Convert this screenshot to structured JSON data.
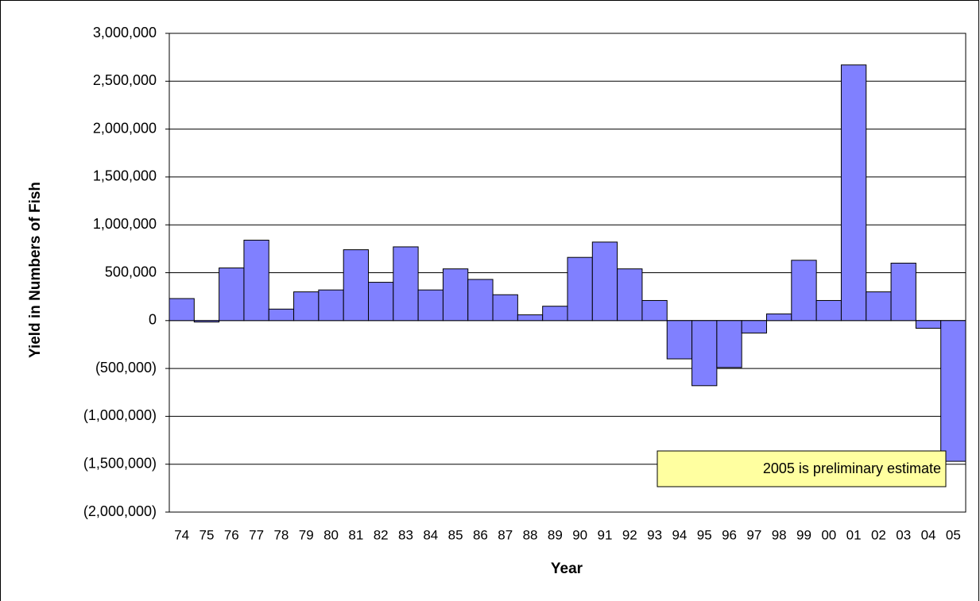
{
  "chart_data": {
    "type": "bar",
    "y_label": "Yield in Numbers of Fish",
    "x_label": "Year",
    "annotation": "2005 is preliminary estimate",
    "categories": [
      "74",
      "75",
      "76",
      "77",
      "78",
      "79",
      "80",
      "81",
      "82",
      "83",
      "84",
      "85",
      "86",
      "87",
      "88",
      "89",
      "90",
      "91",
      "92",
      "93",
      "94",
      "95",
      "96",
      "97",
      "98",
      "99",
      "00",
      "01",
      "02",
      "03",
      "04",
      "05"
    ],
    "values": [
      230000,
      -15000,
      550000,
      840000,
      120000,
      300000,
      320000,
      740000,
      400000,
      770000,
      320000,
      540000,
      430000,
      270000,
      60000,
      150000,
      660000,
      820000,
      540000,
      210000,
      -400000,
      -680000,
      -490000,
      -130000,
      70000,
      630000,
      210000,
      2670000,
      300000,
      600000,
      -80000,
      -1470000
    ],
    "color": "#8080ff",
    "ylim": [
      -2000000,
      3000000
    ],
    "yticks": [
      {
        "value": -2000000,
        "label": "(2,000,000)"
      },
      {
        "value": -1500000,
        "label": "(1,500,000)"
      },
      {
        "value": -1000000,
        "label": "(1,000,000)"
      },
      {
        "value": -500000,
        "label": "(500,000)"
      },
      0,
      {
        "value": 500000,
        "label": "500,000"
      },
      {
        "value": 1000000,
        "label": "1,000,000"
      },
      {
        "value": 1500000,
        "label": "1,500,000"
      },
      {
        "value": 2000000,
        "label": "2,000,000"
      },
      {
        "value": 2500000,
        "label": "2,500,000"
      },
      {
        "value": 3000000,
        "label": "3,000,000"
      }
    ],
    "grid": true
  }
}
